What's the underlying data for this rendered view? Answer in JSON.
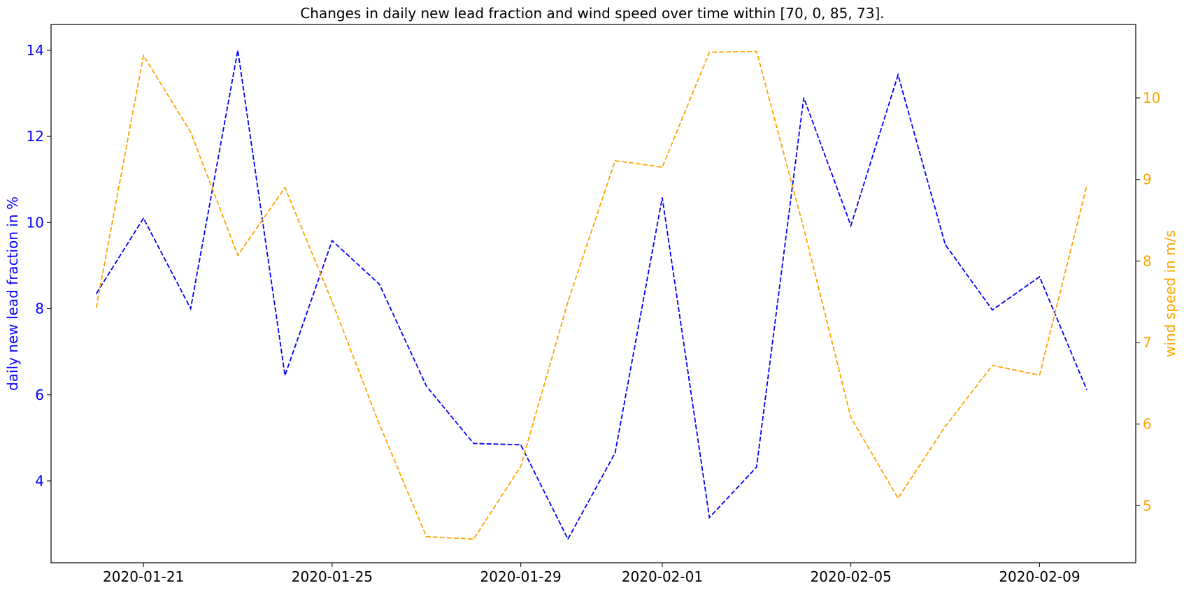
{
  "chart_data": {
    "type": "line",
    "title": "Changes in daily new lead fraction and wind speed over time within [70, 0, 85, 73].",
    "x": [
      "2020-01-20",
      "2020-01-21",
      "2020-01-22",
      "2020-01-23",
      "2020-01-24",
      "2020-01-25",
      "2020-01-26",
      "2020-01-27",
      "2020-01-28",
      "2020-01-29",
      "2020-01-30",
      "2020-01-31",
      "2020-02-01",
      "2020-02-02",
      "2020-02-03",
      "2020-02-04",
      "2020-02-05",
      "2020-02-06",
      "2020-02-07",
      "2020-02-08",
      "2020-02-09",
      "2020-02-10"
    ],
    "x_tick_labels": [
      "2020-01-21",
      "2020-01-25",
      "2020-01-29",
      "2020-02-01",
      "2020-02-05",
      "2020-02-09"
    ],
    "x_tick_dates": [
      "2020-01-21",
      "2020-01-25",
      "2020-01-29",
      "2020-02-01",
      "2020-02-05",
      "2020-02-09"
    ],
    "xlim": [
      "2020-01-19.04",
      "2020-02-11.04"
    ],
    "ylabel": "daily new lead fraction in %",
    "ylim": [
      2.1,
      14.6
    ],
    "y_ticks": [
      4,
      6,
      8,
      10,
      12,
      14
    ],
    "y2label": "wind speed in m/s",
    "y2lim": [
      4.3,
      10.9
    ],
    "y2_ticks": [
      5,
      6,
      7,
      8,
      9,
      10
    ],
    "grid": false,
    "series": [
      {
        "axis": "left",
        "color": "#0000ff",
        "style": "dashed",
        "values": [
          8.35,
          10.1,
          8.0,
          14.0,
          6.45,
          9.58,
          8.57,
          6.2,
          4.87,
          4.84,
          2.65,
          4.65,
          10.58,
          3.15,
          4.32,
          12.9,
          9.93,
          13.43,
          9.49,
          7.97,
          8.74,
          6.12
        ]
      },
      {
        "axis": "right",
        "color": "#ffa500",
        "style": "dashed",
        "values": [
          7.43,
          10.52,
          9.58,
          8.07,
          8.9,
          7.5,
          6.0,
          4.62,
          4.59,
          5.48,
          7.5,
          9.23,
          9.15,
          10.56,
          10.57,
          8.4,
          6.08,
          5.09,
          5.97,
          6.72,
          6.6,
          8.92
        ]
      }
    ]
  }
}
